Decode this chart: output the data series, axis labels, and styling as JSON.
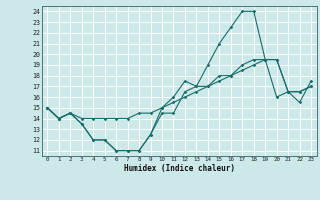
{
  "xlabel": "Humidex (Indice chaleur)",
  "xlim": [
    -0.5,
    23.5
  ],
  "ylim": [
    10.5,
    24.5
  ],
  "yticks": [
    11,
    12,
    13,
    14,
    15,
    16,
    17,
    18,
    19,
    20,
    21,
    22,
    23,
    24
  ],
  "xticks": [
    0,
    1,
    2,
    3,
    4,
    5,
    6,
    7,
    8,
    9,
    10,
    11,
    12,
    13,
    14,
    15,
    16,
    17,
    18,
    19,
    20,
    21,
    22,
    23
  ],
  "bg_color": "#cce8e8",
  "grid_color": "#aad4d4",
  "line_color": "#1a6b6b",
  "line1_y": [
    15,
    14,
    14.5,
    13.5,
    12,
    12,
    11,
    11,
    11,
    12.5,
    14.5,
    14.5,
    16.5,
    17,
    17,
    18,
    18,
    18.5,
    19,
    19.5,
    19.5,
    16.5,
    16.5,
    17
  ],
  "line2_y": [
    15,
    14,
    14.5,
    13.5,
    12,
    12,
    11,
    11,
    11,
    12.5,
    15,
    16,
    17.5,
    17,
    19,
    21,
    22.5,
    24,
    24,
    19.5,
    16,
    16.5,
    15.5,
    17.5
  ],
  "line3_y": [
    15,
    14,
    14.5,
    14,
    14,
    14,
    14,
    14,
    14.5,
    14.5,
    15,
    15.5,
    16,
    16.5,
    17,
    17.5,
    18,
    19,
    19.5,
    19.5,
    19.5,
    16.5,
    16.5,
    17
  ]
}
